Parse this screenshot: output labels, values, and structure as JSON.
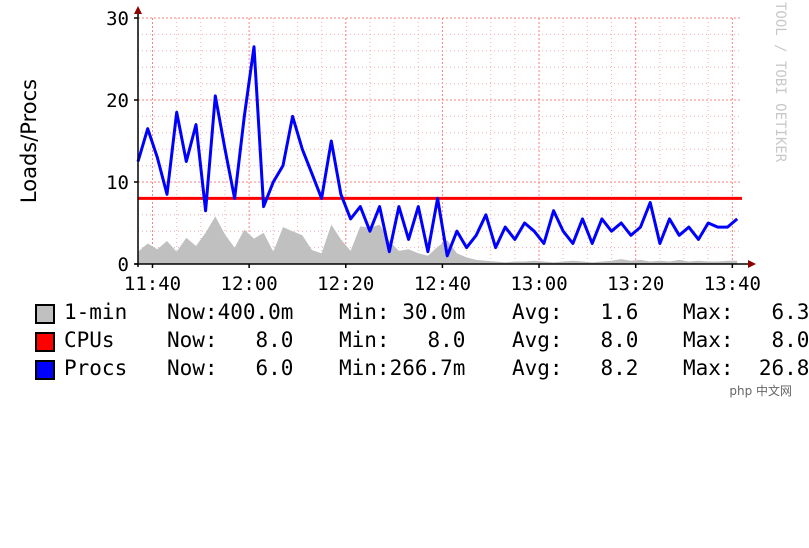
{
  "chart_data": {
    "type": "line",
    "ylabel": "Loads/Procs",
    "side_text": "TOOL / TOBI OETIKER",
    "ylim": [
      0,
      30
    ],
    "yticks": [
      "0",
      "10",
      "20",
      "30"
    ],
    "xlim": [
      "11:37",
      "13:42"
    ],
    "xticks": [
      {
        "label": "11:40",
        "t": "11:40"
      },
      {
        "label": "12:00",
        "t": "12:00"
      },
      {
        "label": "12:20",
        "t": "12:20"
      },
      {
        "label": "12:40",
        "t": "12:40"
      },
      {
        "label": "13:00",
        "t": "13:00"
      },
      {
        "label": "13:20",
        "t": "13:20"
      },
      {
        "label": "13:40",
        "t": "13:40"
      }
    ],
    "grid": true,
    "series": [
      {
        "name": "1-min",
        "kind": "area",
        "color": "#c0c0c0",
        "x": [
          "11:37",
          "11:39",
          "11:41",
          "11:43",
          "11:45",
          "11:47",
          "11:49",
          "11:51",
          "11:53",
          "11:55",
          "11:57",
          "11:59",
          "12:01",
          "12:03",
          "12:05",
          "12:07",
          "12:09",
          "12:11",
          "12:13",
          "12:15",
          "12:17",
          "12:19",
          "12:21",
          "12:23",
          "12:25",
          "12:27",
          "12:29",
          "12:31",
          "12:33",
          "12:35",
          "12:37",
          "12:39",
          "12:41",
          "12:43",
          "12:45",
          "12:47",
          "12:49",
          "12:51",
          "12:53",
          "12:55",
          "12:57",
          "12:59",
          "13:01",
          "13:03",
          "13:05",
          "13:07",
          "13:09",
          "13:11",
          "13:13",
          "13:15",
          "13:17",
          "13:19",
          "13:21",
          "13:23",
          "13:25",
          "13:27",
          "13:29",
          "13:31",
          "13:33",
          "13:35",
          "13:37",
          "13:39",
          "13:41"
        ],
        "y": [
          1.5,
          2.5,
          1.8,
          2.8,
          1.5,
          3.2,
          2.2,
          3.8,
          5.8,
          3.6,
          2.0,
          4.2,
          3.1,
          3.8,
          1.5,
          4.5,
          4.0,
          3.5,
          1.7,
          1.3,
          4.8,
          3.0,
          1.6,
          4.6,
          4.4,
          4.8,
          2.8,
          1.6,
          1.8,
          1.3,
          1.0,
          2.1,
          2.9,
          1.3,
          0.8,
          0.5,
          0.4,
          0.3,
          0.2,
          0.3,
          0.3,
          0.4,
          0.3,
          0.2,
          0.3,
          0.4,
          0.3,
          0.2,
          0.3,
          0.4,
          0.6,
          0.4,
          0.5,
          0.3,
          0.4,
          0.3,
          0.5,
          0.3,
          0.4,
          0.3,
          0.3,
          0.4,
          0.4
        ],
        "legend": {
          "now": "Now:400.0m",
          "min": "Min: 30.0m",
          "avg": "Avg:   1.6",
          "max": "Max:   6.3"
        }
      },
      {
        "name": "CPUs",
        "kind": "line",
        "color": "#ff0000",
        "x": [
          "11:37",
          "13:42"
        ],
        "y": [
          8.0,
          8.0
        ],
        "legend": {
          "now": "Now:   8.0",
          "min": "Min:   8.0",
          "avg": "Avg:   8.0",
          "max": "Max:   8.0"
        }
      },
      {
        "name": "Procs",
        "kind": "line",
        "color": "#0000ff",
        "x": [
          "11:37",
          "11:39",
          "11:41",
          "11:43",
          "11:45",
          "11:47",
          "11:49",
          "11:51",
          "11:53",
          "11:55",
          "11:57",
          "11:59",
          "12:01",
          "12:03",
          "12:05",
          "12:07",
          "12:09",
          "12:11",
          "12:13",
          "12:15",
          "12:17",
          "12:19",
          "12:21",
          "12:23",
          "12:25",
          "12:27",
          "12:29",
          "12:31",
          "12:33",
          "12:35",
          "12:37",
          "12:39",
          "12:41",
          "12:43",
          "12:45",
          "12:47",
          "12:49",
          "12:51",
          "12:53",
          "12:55",
          "12:57",
          "12:59",
          "13:01",
          "13:03",
          "13:05",
          "13:07",
          "13:09",
          "13:11",
          "13:13",
          "13:15",
          "13:17",
          "13:19",
          "13:21",
          "13:23",
          "13:25",
          "13:27",
          "13:29",
          "13:31",
          "13:33",
          "13:35",
          "13:37",
          "13:39",
          "13:41"
        ],
        "y": [
          12.5,
          16.5,
          13.0,
          8.5,
          18.5,
          12.5,
          17.0,
          6.5,
          20.5,
          14.0,
          8.0,
          18.0,
          26.5,
          7.0,
          10.0,
          12.0,
          18.0,
          14.0,
          11.0,
          8.0,
          15.0,
          8.5,
          5.5,
          7.0,
          4.0,
          7.0,
          1.5,
          7.0,
          3.0,
          7.0,
          1.5,
          8.0,
          1.0,
          4.0,
          2.0,
          3.5,
          6.0,
          2.0,
          4.5,
          3.0,
          5.0,
          4.0,
          2.5,
          6.5,
          4.0,
          2.5,
          5.5,
          2.5,
          5.5,
          4.0,
          5.0,
          3.5,
          4.5,
          7.5,
          2.5,
          5.5,
          3.5,
          4.5,
          3.0,
          5.0,
          4.5,
          4.5,
          5.5
        ],
        "legend": {
          "now": "Now:   6.0",
          "min": "Min:266.7m",
          "avg": "Avg:   8.2",
          "max": "Max:  26.8"
        }
      }
    ]
  },
  "watermark": "php 中文网"
}
